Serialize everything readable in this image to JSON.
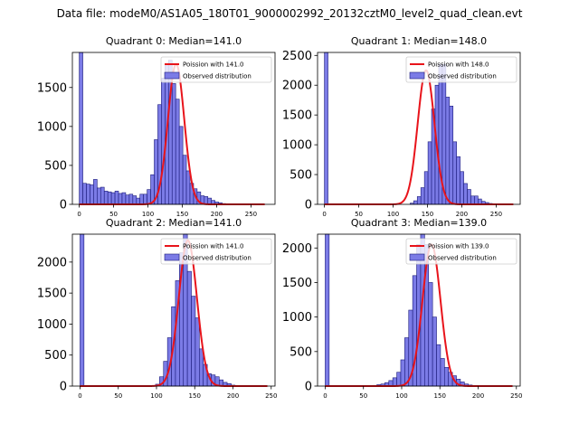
{
  "suptitle": "Data file: modeM0/AS1A05_180T01_9000002992_20132cztM0_level2_quad_clean.evt",
  "colors": {
    "bar_fill": "#7b7be6",
    "bar_edge": "#1a1a7a",
    "poisson_line": "#e8141b",
    "axis": "#000000"
  },
  "legend": {
    "poisson_prefix": "Poission with ",
    "observed": "Observed distribution"
  },
  "chart_data": [
    {
      "type": "bar+line",
      "title": "Quadrant 0: Median=141.0",
      "median": 141.0,
      "legend_label": "Poission with 141.0",
      "bin_width": 5.2,
      "bins_start": 0,
      "xlim": [
        -10,
        285
      ],
      "xticks": [
        0,
        50,
        100,
        150,
        200,
        250
      ],
      "ylim": [
        0,
        1950
      ],
      "yticks": [
        0,
        500,
        1000,
        1500
      ],
      "counts": [
        1950,
        270,
        260,
        250,
        320,
        210,
        220,
        170,
        160,
        150,
        170,
        140,
        150,
        120,
        130,
        110,
        80,
        130,
        130,
        190,
        380,
        830,
        1280,
        1620,
        1800,
        1850,
        1550,
        1350,
        1000,
        630,
        430,
        270,
        200,
        160,
        110,
        100,
        80,
        50,
        30,
        20,
        10,
        5
      ],
      "poisson_peak": 1800,
      "poisson_range": [
        0,
        270
      ]
    },
    {
      "type": "bar+line",
      "title": "Quadrant 1: Median=148.0",
      "median": 148.0,
      "legend_label": "Poission with 148.0",
      "bin_width": 5.2,
      "bins_start": 0,
      "xlim": [
        -10,
        285
      ],
      "xticks": [
        0,
        50,
        100,
        150,
        200,
        250
      ],
      "ylim": [
        0,
        2550
      ],
      "yticks": [
        0,
        500,
        1000,
        1500,
        2000,
        2500
      ],
      "counts": [
        2550,
        0,
        0,
        0,
        0,
        0,
        0,
        0,
        0,
        0,
        0,
        0,
        0,
        0,
        0,
        0,
        0,
        0,
        0,
        0,
        0,
        0,
        0,
        0,
        20,
        60,
        130,
        280,
        550,
        1050,
        1600,
        2000,
        2350,
        2350,
        1800,
        1650,
        1050,
        800,
        550,
        350,
        250,
        140,
        140,
        90,
        50,
        30,
        15,
        5
      ],
      "poisson_peak": 2250,
      "poisson_range": [
        0,
        275
      ]
    },
    {
      "type": "bar+line",
      "title": "Quadrant 2: Median=141.0",
      "median": 141.0,
      "legend_label": "Poission with 141.0",
      "bin_width": 5.2,
      "bins_start": 0,
      "xlim": [
        -10,
        255
      ],
      "xticks": [
        0,
        50,
        100,
        150,
        200,
        250
      ],
      "ylim": [
        0,
        2450
      ],
      "yticks": [
        0,
        500,
        1000,
        1500,
        2000
      ],
      "counts": [
        2450,
        0,
        0,
        0,
        0,
        0,
        0,
        0,
        0,
        0,
        0,
        0,
        0,
        0,
        0,
        0,
        0,
        0,
        0,
        30,
        150,
        400,
        780,
        1280,
        1700,
        2150,
        2450,
        1850,
        1450,
        1100,
        600,
        350,
        200,
        180,
        150,
        100,
        60,
        40,
        15,
        5
      ],
      "poisson_peak": 2350,
      "poisson_range": [
        0,
        245
      ]
    },
    {
      "type": "bar+line",
      "title": "Quadrant 3: Median=139.0",
      "median": 139.0,
      "legend_label": "Poission with 139.0",
      "bin_width": 5.2,
      "bins_start": 0,
      "xlim": [
        -10,
        255
      ],
      "xticks": [
        0,
        50,
        100,
        150,
        200,
        250
      ],
      "ylim": [
        0,
        2200
      ],
      "yticks": [
        0,
        500,
        1000,
        1500,
        2000
      ],
      "counts": [
        2200,
        0,
        0,
        0,
        0,
        0,
        0,
        0,
        0,
        0,
        0,
        0,
        10,
        20,
        30,
        50,
        80,
        120,
        200,
        380,
        700,
        1100,
        1600,
        2050,
        2200,
        2050,
        1500,
        1000,
        600,
        400,
        270,
        200,
        150,
        100,
        60,
        30,
        15,
        5
      ],
      "poisson_peak": 2050,
      "poisson_range": [
        0,
        245
      ]
    }
  ]
}
